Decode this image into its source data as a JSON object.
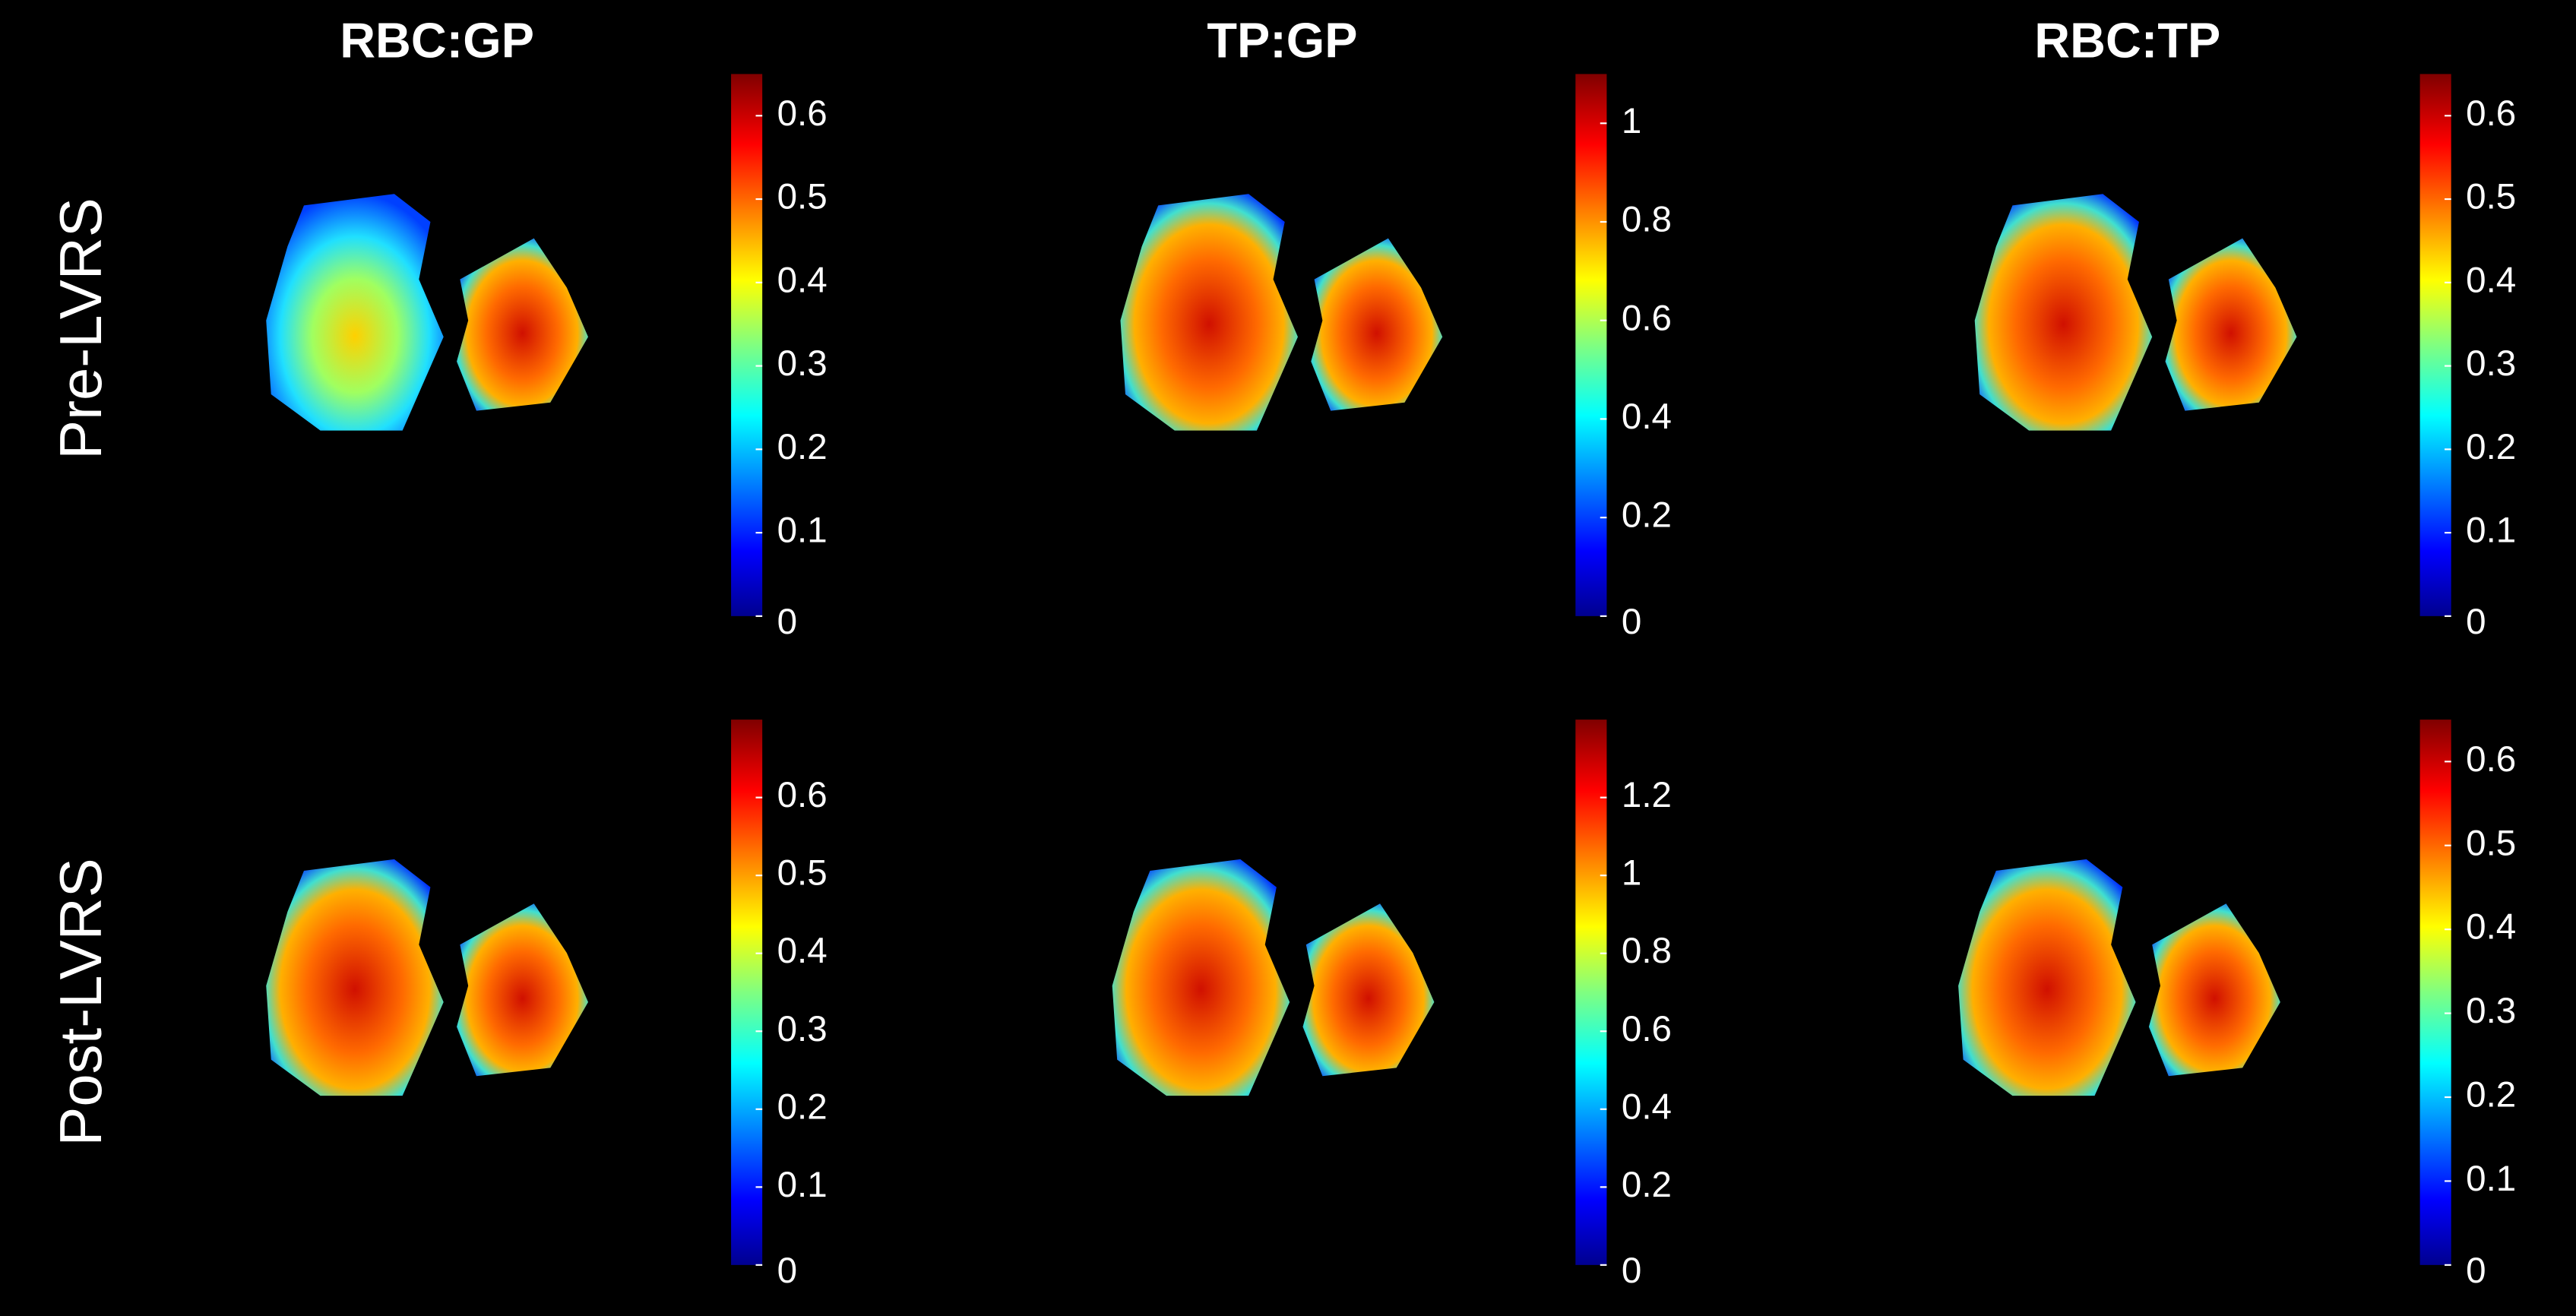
{
  "column_titles": [
    "RBC:GP",
    "TP:GP",
    "RBC:TP"
  ],
  "row_labels": [
    "Pre-LVRS",
    "Post-LVRS"
  ],
  "panels": [
    {
      "clim": [
        0,
        0.65
      ],
      "ticks": [
        0,
        0.1,
        0.2,
        0.3,
        0.4,
        0.5,
        0.6
      ]
    },
    {
      "clim": [
        0,
        1.1
      ],
      "ticks": [
        0,
        0.2,
        0.4,
        0.6,
        0.8,
        1
      ]
    },
    {
      "clim": [
        0,
        0.65
      ],
      "ticks": [
        0,
        0.1,
        0.2,
        0.3,
        0.4,
        0.5,
        0.6
      ]
    },
    {
      "clim": [
        0,
        0.7
      ],
      "ticks": [
        0,
        0.1,
        0.2,
        0.3,
        0.4,
        0.5,
        0.6
      ]
    },
    {
      "clim": [
        0,
        1.4
      ],
      "ticks": [
        0,
        0.2,
        0.4,
        0.6,
        0.8,
        1,
        1.2
      ]
    },
    {
      "clim": [
        0,
        0.65
      ],
      "ticks": [
        0,
        0.1,
        0.2,
        0.3,
        0.4,
        0.5,
        0.6
      ]
    }
  ]
}
